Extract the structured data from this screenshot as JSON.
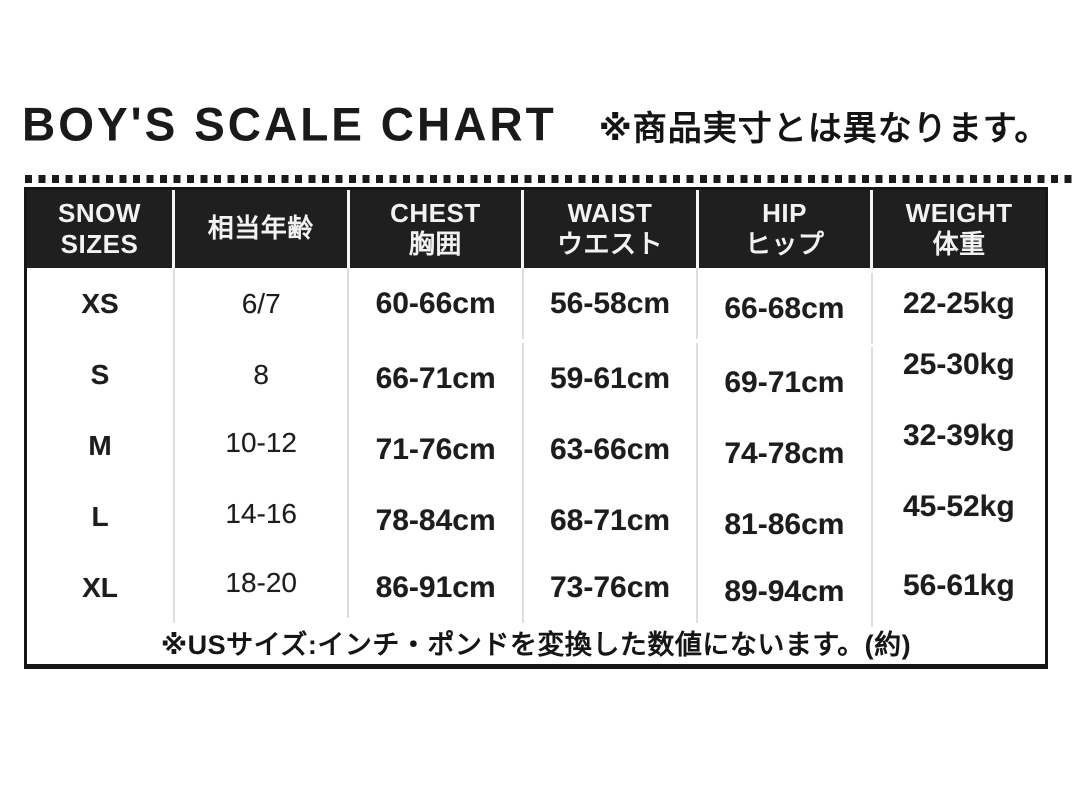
{
  "title": {
    "en": "BOY'S SCALE CHART",
    "ja_note": "※商品実寸とは異なります。"
  },
  "chart_data": {
    "type": "table",
    "title": "BOY'S SCALE CHART",
    "columns": [
      {
        "line1": "SNOW",
        "line2": "SIZES"
      },
      {
        "line1": "相当年齢",
        "line2": ""
      },
      {
        "line1": "CHEST",
        "line2": "胸囲"
      },
      {
        "line1": "WAIST",
        "line2": "ウエスト"
      },
      {
        "line1": "HIP",
        "line2": "ヒップ"
      },
      {
        "line1": "WEIGHT",
        "line2": "体重"
      }
    ],
    "rows": [
      {
        "size": "XS",
        "age": "6/7",
        "chest": "60-66cm",
        "waist": "56-58cm",
        "hip": "66-68cm",
        "weight": "22-25kg"
      },
      {
        "size": "S",
        "age": "8",
        "chest": "66-71cm",
        "waist": "59-61cm",
        "hip": "69-71cm",
        "weight": "25-30kg"
      },
      {
        "size": "M",
        "age": "10-12",
        "chest": "71-76cm",
        "waist": "63-66cm",
        "hip": "74-78cm",
        "weight": "32-39kg"
      },
      {
        "size": "L",
        "age": "14-16",
        "chest": "78-84cm",
        "waist": "68-71cm",
        "hip": "81-86cm",
        "weight": "45-52kg"
      },
      {
        "size": "XL",
        "age": "18-20",
        "chest": "86-91cm",
        "waist": "73-76cm",
        "hip": "89-94cm",
        "weight": "56-61kg"
      }
    ],
    "footnote": "※USサイズ:インチ・ポンドを変換した数値にないます。(約)"
  },
  "colors": {
    "background": "#ffffff",
    "header_bg": "#1f1f1f",
    "header_text": "#f2f2f2",
    "body_text": "#1d1d1d",
    "border": "#161616",
    "body_divider": "#dedede"
  }
}
